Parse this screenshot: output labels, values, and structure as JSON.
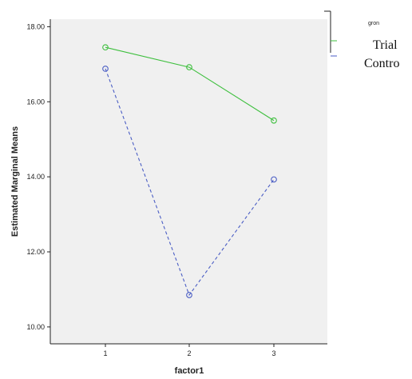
{
  "chart_data": {
    "type": "line",
    "title": "",
    "xlabel": "factor1",
    "ylabel": "Estimated Marginal Means",
    "categories": [
      "1",
      "2",
      "3"
    ],
    "ylim": [
      9.55,
      18.2
    ],
    "y_ticks": [
      10,
      12,
      14,
      16,
      18
    ],
    "y_tick_labels": [
      "10.00",
      "12.00",
      "14.00",
      "16.00",
      "18.00"
    ],
    "grid": false,
    "legend": {
      "title": "gron",
      "placement": "top-right",
      "entries": [
        "Trial",
        "Contro"
      ]
    },
    "series": [
      {
        "name": "Trial",
        "values": [
          17.45,
          16.92,
          15.5
        ],
        "color": "#3dbf3d",
        "line_style": "solid",
        "marker": "open-circle"
      },
      {
        "name": "Contro",
        "values": [
          16.88,
          10.85,
          13.93
        ],
        "color": "#4a5dc4",
        "line_style": "dashed",
        "marker": "open-circle"
      }
    ],
    "colors": {
      "plot_background": "#f0f0f0",
      "axis": "#222222"
    }
  }
}
